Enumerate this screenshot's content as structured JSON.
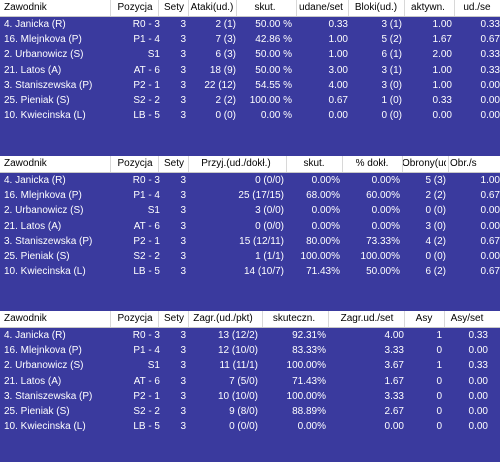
{
  "players": [
    {
      "name": "4. Janicka (R)",
      "pos": "R0 - 3",
      "sety": "3"
    },
    {
      "name": "16. Mlejnkova (P)",
      "pos": "P1 - 4",
      "sety": "3"
    },
    {
      "name": "2. Urbanowicz (S)",
      "pos": "S1",
      "sety": "3"
    },
    {
      "name": "21. Latos (A)",
      "pos": "AT - 6",
      "sety": "3"
    },
    {
      "name": "3. Staniszewska (P)",
      "pos": "P2 - 1",
      "sety": "3"
    },
    {
      "name": "25. Pieniak (S)",
      "pos": "S2 - 2",
      "sety": "3"
    },
    {
      "name": "10. Kwiecinska (L)",
      "pos": "LB - 5",
      "sety": "3"
    }
  ],
  "tables": [
    {
      "headers": [
        "Zawodnik",
        "Pozycja",
        "Sety",
        "Ataki(ud.)",
        "skut.",
        "udane/set",
        "Bloki(ud.)",
        "aktywn.",
        "ud./se"
      ],
      "rows": [
        [
          "4. Janicka (R)",
          "R0 - 3",
          "3",
          "2 (1)",
          "50.00 %",
          "0.33",
          "3 (1)",
          "1.00",
          "0.33"
        ],
        [
          "16. Mlejnkova (P)",
          "P1 - 4",
          "3",
          "7 (3)",
          "42.86 %",
          "1.00",
          "5 (2)",
          "1.67",
          "0.67"
        ],
        [
          "2. Urbanowicz (S)",
          "S1",
          "3",
          "6 (3)",
          "50.00 %",
          "1.00",
          "6 (1)",
          "2.00",
          "0.33"
        ],
        [
          "21. Latos (A)",
          "AT - 6",
          "3",
          "18 (9)",
          "50.00 %",
          "3.00",
          "3 (1)",
          "1.00",
          "0.33"
        ],
        [
          "3. Staniszewska (P)",
          "P2 - 1",
          "3",
          "22 (12)",
          "54.55 %",
          "4.00",
          "3 (0)",
          "1.00",
          "0.00"
        ],
        [
          "25. Pieniak (S)",
          "S2 - 2",
          "3",
          "2 (2)",
          "100.00 %",
          "0.67",
          "1 (0)",
          "0.33",
          "0.00"
        ],
        [
          "10. Kwiecinska (L)",
          "LB - 5",
          "3",
          "0 (0)",
          "0.00 %",
          "0.00",
          "0 (0)",
          "0.00",
          "0.00"
        ]
      ]
    },
    {
      "headers": [
        "Zawodnik",
        "Pozycja",
        "Sety",
        "Przyj.(ud./dokł.)",
        "skut.",
        "% dokł.",
        "Obrony(ud.)",
        "Obr./s"
      ],
      "rows": [
        [
          "4. Janicka (R)",
          "R0 - 3",
          "3",
          "0 (0/0)",
          "0.00%",
          "0.00%",
          "5 (3)",
          "1.00"
        ],
        [
          "16. Mlejnkova (P)",
          "P1 - 4",
          "3",
          "25 (17/15)",
          "68.00%",
          "60.00%",
          "2 (2)",
          "0.67"
        ],
        [
          "2. Urbanowicz (S)",
          "S1",
          "3",
          "3 (0/0)",
          "0.00%",
          "0.00%",
          "0 (0)",
          "0.00"
        ],
        [
          "21. Latos (A)",
          "AT - 6",
          "3",
          "0 (0/0)",
          "0.00%",
          "0.00%",
          "3 (0)",
          "0.00"
        ],
        [
          "3. Staniszewska (P)",
          "P2 - 1",
          "3",
          "15 (12/11)",
          "80.00%",
          "73.33%",
          "4 (2)",
          "0.67"
        ],
        [
          "25. Pieniak (S)",
          "S2 - 2",
          "3",
          "1 (1/1)",
          "100.00%",
          "100.00%",
          "0 (0)",
          "0.00"
        ],
        [
          "10. Kwiecinska (L)",
          "LB - 5",
          "3",
          "14 (10/7)",
          "71.43%",
          "50.00%",
          "6 (2)",
          "0.67"
        ]
      ]
    },
    {
      "headers": [
        "Zawodnik",
        "Pozycja",
        "Sety",
        "Zagr.(ud./pkt)",
        "skuteczn.",
        "Zagr.ud./set",
        "Asy",
        "Asy/set"
      ],
      "rows": [
        [
          "4. Janicka (R)",
          "R0 - 3",
          "3",
          "13 (12/2)",
          "92.31%",
          "4.00",
          "1",
          "0.33"
        ],
        [
          "16. Mlejnkova (P)",
          "P1 - 4",
          "3",
          "12 (10/0)",
          "83.33%",
          "3.33",
          "0",
          "0.00"
        ],
        [
          "2. Urbanowicz (S)",
          "S1",
          "3",
          "11 (11/1)",
          "100.00%",
          "3.67",
          "1",
          "0.33"
        ],
        [
          "21. Latos (A)",
          "AT - 6",
          "3",
          "7 (5/0)",
          "71.43%",
          "1.67",
          "0",
          "0.00"
        ],
        [
          "3. Staniszewska (P)",
          "P2 - 1",
          "3",
          "10 (10/0)",
          "100.00%",
          "3.33",
          "0",
          "0.00"
        ],
        [
          "25. Pieniak (S)",
          "S2 - 2",
          "3",
          "9 (8/0)",
          "88.89%",
          "2.67",
          "0",
          "0.00"
        ],
        [
          "10. Kwiecinska (L)",
          "LB - 5",
          "3",
          "0 (0/0)",
          "0.00%",
          "0.00",
          "0",
          "0.00"
        ]
      ]
    }
  ],
  "colors": {
    "background": "#3a3a9e",
    "header_bg": "#ffffff",
    "text": "#ffffff"
  }
}
